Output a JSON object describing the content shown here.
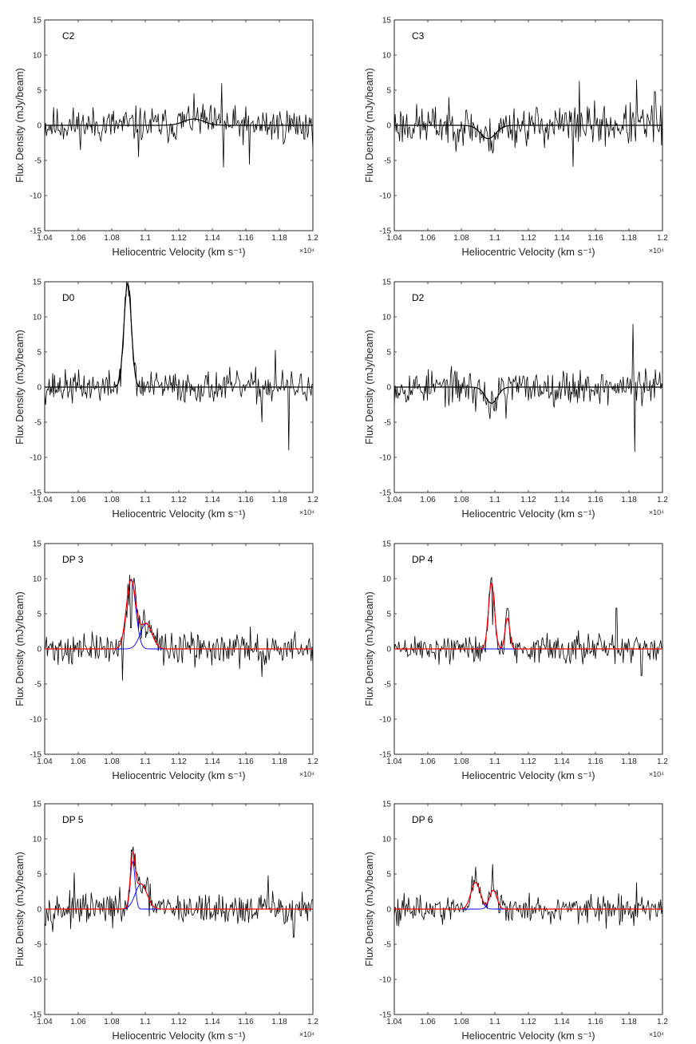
{
  "chart_data": [
    {
      "type": "line",
      "panel_label": "C2",
      "xlabel": "Heliocentric Velocity (km s⁻¹)",
      "ylabel": "Flux Density (mJy/beam)",
      "x_multiplier": "×10⁴",
      "xlim": [
        1.04,
        1.2
      ],
      "ylim": [
        -15,
        15
      ],
      "xticks": [
        "1.04",
        "1.06",
        "1.08",
        "1.1",
        "1.12",
        "1.14",
        "1.16",
        "1.18",
        "1.2"
      ],
      "yticks": [
        "-15",
        "-10",
        "-5",
        "0",
        "5",
        "10",
        "15"
      ],
      "spectrum": {
        "rms": 1.6,
        "seed": 11,
        "spikes": [
          [
            1.1455,
            6.0
          ],
          [
            1.1465,
            -6.0
          ],
          [
            1.162,
            -5.6
          ],
          [
            1.096,
            -4.5
          ]
        ]
      },
      "components": [
        {
          "amp": 0.9,
          "center": 1.129,
          "sigma": 0.006
        }
      ],
      "show_components": false,
      "fit_color": "#000000",
      "component_color": "#0000ff",
      "data_color": "#000000"
    },
    {
      "type": "line",
      "panel_label": "C3",
      "xlabel": "Heliocentric Velocity (km s⁻¹)",
      "ylabel": "Flux Density (mJy/beam)",
      "x_multiplier": "×10⁴",
      "xlim": [
        1.04,
        1.2
      ],
      "ylim": [
        -15,
        15
      ],
      "xticks": [
        "1.04",
        "1.06",
        "1.08",
        "1.1",
        "1.12",
        "1.14",
        "1.16",
        "1.18",
        "1.2"
      ],
      "yticks": [
        "-15",
        "-10",
        "-5",
        "0",
        "5",
        "10",
        "15"
      ],
      "spectrum": {
        "rms": 1.8,
        "seed": 23,
        "spikes": [
          [
            1.1505,
            6.3
          ],
          [
            1.1845,
            6.5
          ],
          [
            1.1465,
            -5.9
          ],
          [
            1.1955,
            4.8
          ]
        ]
      },
      "components": [
        {
          "amp": -1.9,
          "center": 1.096,
          "sigma": 0.0045
        }
      ],
      "show_components": false,
      "fit_color": "#000000",
      "component_color": "#0000ff",
      "data_color": "#000000"
    },
    {
      "type": "line",
      "panel_label": "D0",
      "xlabel": "Heliocentric Velocity (km s⁻¹)",
      "ylabel": "Flux Density (mJy/beam)",
      "x_multiplier": "×10⁴",
      "xlim": [
        1.04,
        1.2
      ],
      "ylim": [
        -15,
        15
      ],
      "xticks": [
        "1.04",
        "1.06",
        "1.08",
        "1.1",
        "1.12",
        "1.14",
        "1.16",
        "1.18",
        "1.2"
      ],
      "yticks": [
        "-15",
        "-10",
        "-5",
        "0",
        "5",
        "10",
        "15"
      ],
      "spectrum": {
        "rms": 1.4,
        "seed": 37,
        "spikes": [
          [
            1.1855,
            -9.0
          ],
          [
            1.1695,
            -5.0
          ],
          [
            1.1775,
            5.3
          ]
        ]
      },
      "components": [
        {
          "amp": 14.8,
          "center": 1.0895,
          "sigma": 0.0022
        }
      ],
      "show_components": false,
      "fit_color": "#000000",
      "component_color": "#0000ff",
      "data_color": "#000000"
    },
    {
      "type": "line",
      "panel_label": "D2",
      "xlabel": "Heliocentric Velocity (km s⁻¹)",
      "ylabel": "Flux Density (mJy/beam)",
      "x_multiplier": "×10⁴",
      "xlim": [
        1.04,
        1.2
      ],
      "ylim": [
        -15,
        15
      ],
      "xticks": [
        "1.04",
        "1.06",
        "1.08",
        "1.1",
        "1.12",
        "1.14",
        "1.16",
        "1.18",
        "1.2"
      ],
      "yticks": [
        "-15",
        "-10",
        "-5",
        "0",
        "5",
        "10",
        "15"
      ],
      "spectrum": {
        "rms": 1.5,
        "seed": 53,
        "spikes": [
          [
            1.1825,
            9.0
          ],
          [
            1.1835,
            -9.2
          ],
          [
            1.1065,
            -4.5
          ],
          [
            1.0885,
            -3.5
          ]
        ]
      },
      "components": [
        {
          "amp": -2.3,
          "center": 1.098,
          "sigma": 0.0035
        }
      ],
      "show_components": false,
      "fit_color": "#000000",
      "component_color": "#0000ff",
      "data_color": "#000000"
    },
    {
      "type": "line",
      "panel_label": "DP 3",
      "xlabel": "Heliocentric Velocity (km s⁻¹)",
      "ylabel": "Flux Density (mJy/beam)",
      "x_multiplier": "×10⁴",
      "xlim": [
        1.04,
        1.2
      ],
      "ylim": [
        -15,
        15
      ],
      "xticks": [
        "1.04",
        "1.06",
        "1.08",
        "1.1",
        "1.12",
        "1.14",
        "1.16",
        "1.18",
        "1.2"
      ],
      "yticks": [
        "-15",
        "-10",
        "-5",
        "0",
        "5",
        "10",
        "15"
      ],
      "spectrum": {
        "rms": 1.4,
        "seed": 71,
        "spikes": [
          [
            1.0915,
            3.0
          ],
          [
            1.0865,
            -4.5
          ],
          [
            1.1695,
            -4.0
          ]
        ]
      },
      "components": [
        {
          "amp": 9.8,
          "center": 1.0915,
          "sigma": 0.0028
        },
        {
          "amp": 3.6,
          "center": 1.1005,
          "sigma": 0.0035
        }
      ],
      "show_components": true,
      "fit_color": "#ff0000",
      "component_color": "#0000ff",
      "data_color": "#000000"
    },
    {
      "type": "line",
      "panel_label": "DP 4",
      "xlabel": "Heliocentric Velocity (km s⁻¹)",
      "ylabel": "Flux Density (mJy/beam)",
      "x_multiplier": "×10⁴",
      "xlim": [
        1.04,
        1.2
      ],
      "ylim": [
        -15,
        15
      ],
      "xticks": [
        "1.04",
        "1.06",
        "1.08",
        "1.1",
        "1.12",
        "1.14",
        "1.16",
        "1.18",
        "1.2"
      ],
      "yticks": [
        "-15",
        "-10",
        "-5",
        "0",
        "5",
        "10",
        "15"
      ],
      "spectrum": {
        "rms": 1.3,
        "seed": 89,
        "spikes": [
          [
            1.0985,
            3.4
          ],
          [
            1.1725,
            5.8
          ],
          [
            1.1875,
            -3.8
          ]
        ]
      },
      "components": [
        {
          "amp": 9.4,
          "center": 1.098,
          "sigma": 0.0018
        },
        {
          "amp": 4.4,
          "center": 1.1075,
          "sigma": 0.0014
        }
      ],
      "show_components": true,
      "fit_color": "#ff0000",
      "component_color": "#0000ff",
      "data_color": "#000000"
    },
    {
      "type": "line",
      "panel_label": "DP 5",
      "xlabel": "Heliocentric Velocity (km s⁻¹)",
      "ylabel": "Flux Density (mJy/beam)",
      "x_multiplier": "×10⁴",
      "xlim": [
        1.04,
        1.2
      ],
      "ylim": [
        -15,
        15
      ],
      "xticks": [
        "1.04",
        "1.06",
        "1.08",
        "1.1",
        "1.12",
        "1.14",
        "1.16",
        "1.18",
        "1.2"
      ],
      "yticks": [
        "-15",
        "-10",
        "-5",
        "0",
        "5",
        "10",
        "15"
      ],
      "spectrum": {
        "rms": 1.4,
        "seed": 97,
        "spikes": [
          [
            1.0575,
            5.2
          ],
          [
            1.1735,
            4.8
          ],
          [
            1.1885,
            -4.0
          ]
        ]
      },
      "components": [
        {
          "amp": 6.8,
          "center": 1.0925,
          "sigma": 0.0014
        },
        {
          "amp": 3.6,
          "center": 1.0975,
          "sigma": 0.0035
        }
      ],
      "show_components": true,
      "fit_color": "#ff0000",
      "component_color": "#0000ff",
      "data_color": "#000000"
    },
    {
      "type": "line",
      "panel_label": "DP 6",
      "xlabel": "Heliocentric Velocity (km s⁻¹)",
      "ylabel": "Flux Density (mJy/beam)",
      "x_multiplier": "×10⁴",
      "xlim": [
        1.04,
        1.2
      ],
      "ylim": [
        -15,
        15
      ],
      "xticks": [
        "1.04",
        "1.06",
        "1.08",
        "1.1",
        "1.12",
        "1.14",
        "1.16",
        "1.18",
        "1.2"
      ],
      "yticks": [
        "-15",
        "-10",
        "-5",
        "0",
        "5",
        "10",
        "15"
      ],
      "spectrum": {
        "rms": 1.2,
        "seed": 113,
        "spikes": [
          [
            1.0985,
            6.4
          ],
          [
            1.0885,
            6.0
          ],
          [
            1.1845,
            3.8
          ],
          [
            1.1665,
            -2.8
          ]
        ]
      },
      "components": [
        {
          "amp": 3.8,
          "center": 1.0885,
          "sigma": 0.0028
        },
        {
          "amp": 2.7,
          "center": 1.099,
          "sigma": 0.0022
        }
      ],
      "show_components": true,
      "fit_color": "#ff0000",
      "component_color": "#0000ff",
      "data_color": "#000000"
    }
  ]
}
